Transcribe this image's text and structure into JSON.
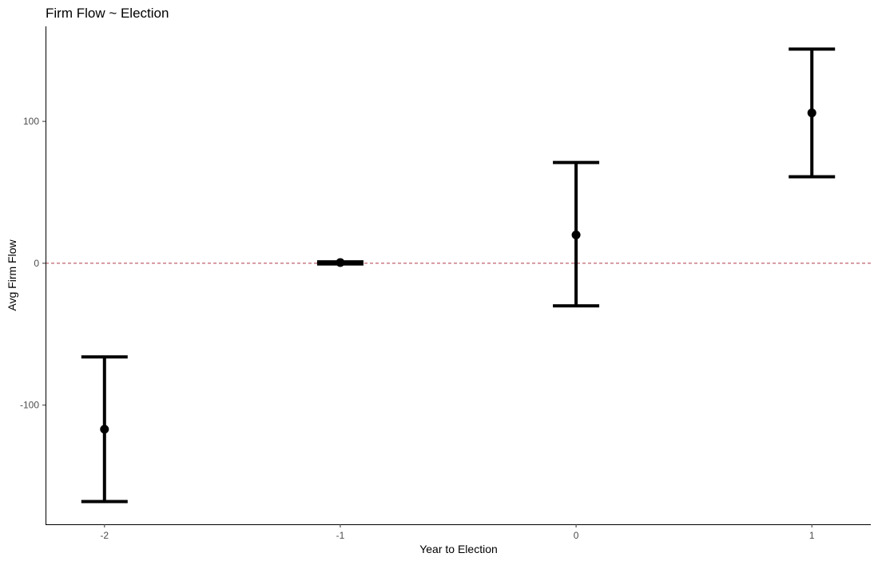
{
  "chart_data": {
    "type": "scatter",
    "title": "Firm Flow ~ Election",
    "xlabel": "Year to Election",
    "ylabel": "Avg Firm Flow",
    "x": [
      -2,
      -1,
      0,
      1
    ],
    "x_tick_labels": [
      "-2",
      "-1",
      "0",
      "1"
    ],
    "y_ticks": [
      -100,
      0,
      100
    ],
    "y_tick_labels": [
      "-100",
      "0",
      "100"
    ],
    "xlim": [
      -2.25,
      1.25
    ],
    "ylim": [
      -184,
      167
    ],
    "series": [
      {
        "points": [
          {
            "x": -2,
            "y": -117,
            "ymin": -168,
            "ymax": -66
          },
          {
            "x": -1,
            "y": 0.5,
            "ymin": -0.5,
            "ymax": 1
          },
          {
            "x": 0,
            "y": 20,
            "ymin": -30,
            "ymax": 71
          },
          {
            "x": 1,
            "y": 106,
            "ymin": 61,
            "ymax": 151
          }
        ]
      }
    ],
    "reference_line": {
      "y": 0,
      "style": "dashed",
      "color": "#b03a48"
    },
    "grid": false,
    "colors": {
      "points": "#000000",
      "errorbars": "#000000",
      "axis": "#000000"
    }
  }
}
